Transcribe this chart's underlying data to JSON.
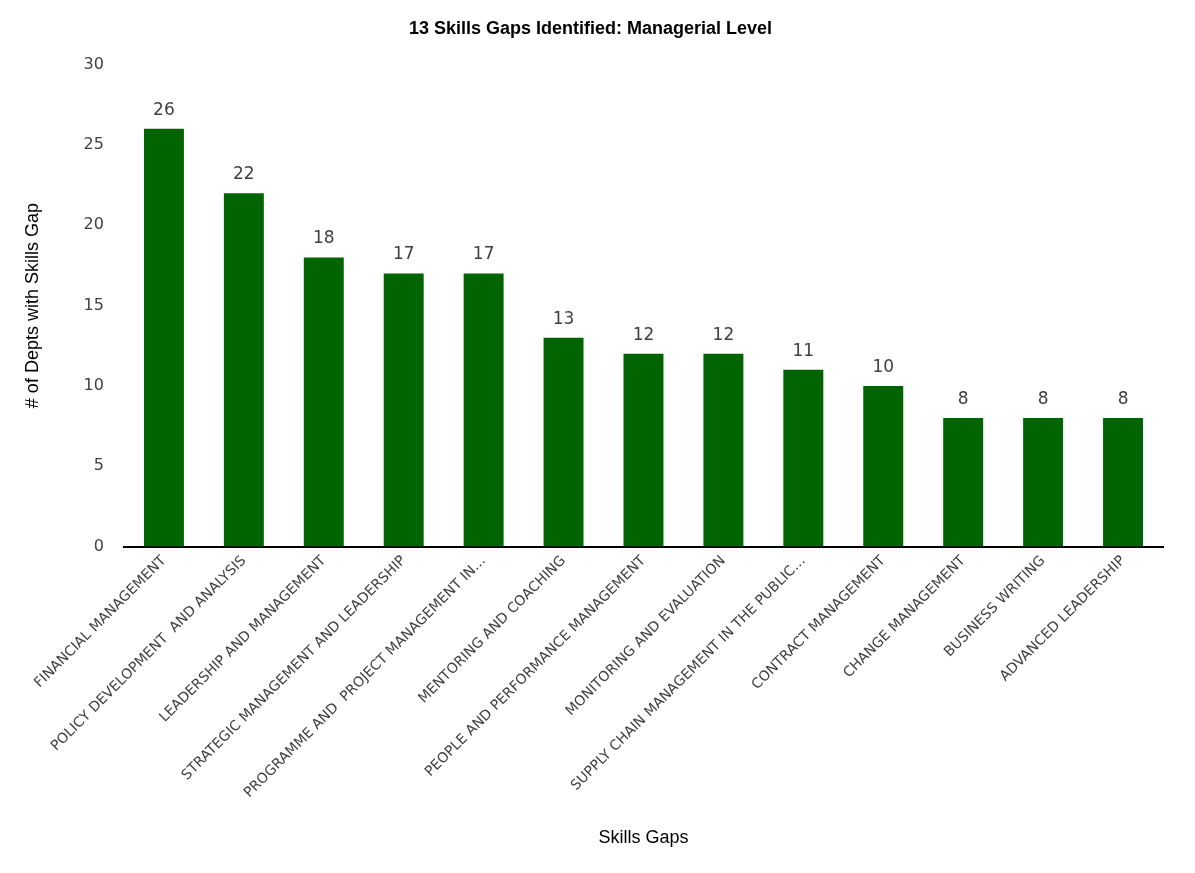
{
  "chart_data": {
    "type": "bar",
    "title": "13 Skills Gaps Identified: Managerial Level",
    "xlabel": "Skills Gaps",
    "ylabel": "# of Depts with Skills Gap",
    "categories": [
      "FINANCIAL MANAGEMENT",
      "POLICY DEVELOPMENT  AND ANALYSIS",
      "LEADERSHIP AND MANAGEMENT",
      "STRATEGIC MANAGEMENT AND LEADERSHIP",
      "PROGRAMME AND  PROJECT MANAGEMENT IN…",
      "MENTORING AND COACHING",
      "PEOPLE AND PERFORMANCE MANAGEMENT",
      "MONITORING AND EVALUATION",
      "SUPPLY CHAIN MANAGEMENT IN THE PUBLIC…",
      "CONTRACT MANAGEMENT",
      "CHANGE MANAGEMENT",
      "BUSINESS WRITING",
      "ADVANCED LEADERSHIP"
    ],
    "values": [
      26,
      22,
      18,
      17,
      17,
      13,
      12,
      12,
      11,
      10,
      8,
      8,
      8
    ],
    "color": "#006400",
    "ylim": [
      0,
      30
    ],
    "yticks": [
      0,
      5,
      10,
      15,
      20,
      25,
      30
    ],
    "grid": false,
    "legend": false,
    "data_labels": true
  }
}
